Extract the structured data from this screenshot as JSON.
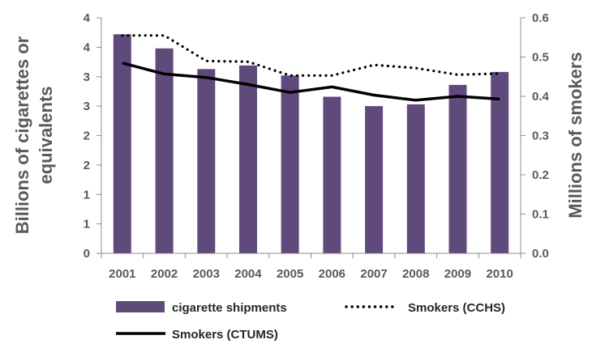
{
  "chart_data": {
    "type": "bar",
    "categories": [
      "2001",
      "2002",
      "2003",
      "2004",
      "2005",
      "2006",
      "2007",
      "2008",
      "2009",
      "2010"
    ],
    "series": [
      {
        "name": "cigarette shipments",
        "type": "bar",
        "axis": "left",
        "color": "#604a7b",
        "values": [
          3.72,
          3.48,
          3.13,
          3.19,
          3.02,
          2.66,
          2.5,
          2.53,
          2.86,
          3.08
        ]
      },
      {
        "name": "Smokers (CCHS)",
        "type": "line",
        "style": "dotted",
        "axis": "right",
        "color": "#000000",
        "values": [
          0.555,
          0.555,
          0.49,
          0.488,
          0.453,
          0.453,
          0.48,
          0.472,
          0.455,
          0.458
        ]
      },
      {
        "name": "Smokers (CTUMS)",
        "type": "line",
        "style": "solid",
        "axis": "right",
        "color": "#000000",
        "values": [
          0.485,
          0.457,
          0.448,
          0.43,
          0.41,
          0.424,
          0.403,
          0.39,
          0.4,
          0.393
        ]
      }
    ],
    "ylabel": "Billions of cigarettes or equivalents",
    "ylabel_lines": [
      "Billions of cigarettes or",
      "equivalents"
    ],
    "y2label": "Millions of smokers",
    "ylim": [
      0,
      4
    ],
    "y2lim": [
      0,
      0.6
    ],
    "left_ticks": [
      "0",
      "1",
      "1",
      "2",
      "2",
      "3",
      "3",
      "4",
      "4"
    ],
    "right_ticks": [
      "0.0",
      "0.1",
      "0.2",
      "0.3",
      "0.4",
      "0.5",
      "0.6"
    ],
    "grid": false,
    "legend_position": "bottom"
  }
}
